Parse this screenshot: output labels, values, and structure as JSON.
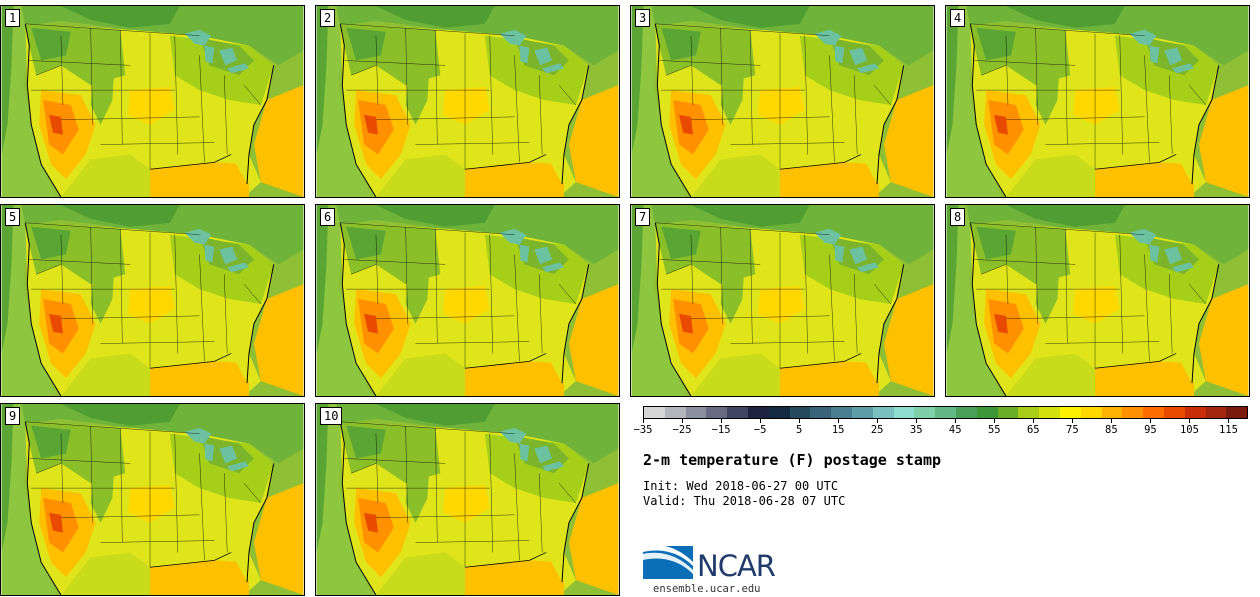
{
  "panels": [
    {
      "label": "1"
    },
    {
      "label": "2"
    },
    {
      "label": "3"
    },
    {
      "label": "4"
    },
    {
      "label": "5"
    },
    {
      "label": "6"
    },
    {
      "label": "7"
    },
    {
      "label": "8"
    },
    {
      "label": "9"
    },
    {
      "label": "10"
    }
  ],
  "colorbar": {
    "colors": [
      "#d6d6d6",
      "#b3b4bc",
      "#8c8fa0",
      "#666a82",
      "#3e4663",
      "#1c2440",
      "#142a40",
      "#254a5e",
      "#3a6278",
      "#4a7f8f",
      "#5c9ea8",
      "#7bc0c0",
      "#8fded2",
      "#7fd0a8",
      "#62b986",
      "#4aa058",
      "#3d9637",
      "#6aad27",
      "#a8cd18",
      "#d4e10f",
      "#fff200",
      "#ffd800",
      "#ffb300",
      "#ff9000",
      "#ff6d00",
      "#e84a00",
      "#c82e08",
      "#a3260e",
      "#7a1a0e"
    ],
    "tick_labels": [
      "−35",
      "−25",
      "−15",
      "−5",
      "5",
      "15",
      "25",
      "35",
      "45",
      "55",
      "65",
      "75",
      "85",
      "95",
      "105",
      "115"
    ],
    "min": -35,
    "max": 120
  },
  "title": "2-m temperature (F) postage stamp",
  "init": "Init: Wed 2018-06-27 00 UTC",
  "valid": "Valid: Thu 2018-06-28 07 UTC",
  "logo": {
    "name": "NCAR",
    "url": "ensemble.ucar.edu"
  }
}
